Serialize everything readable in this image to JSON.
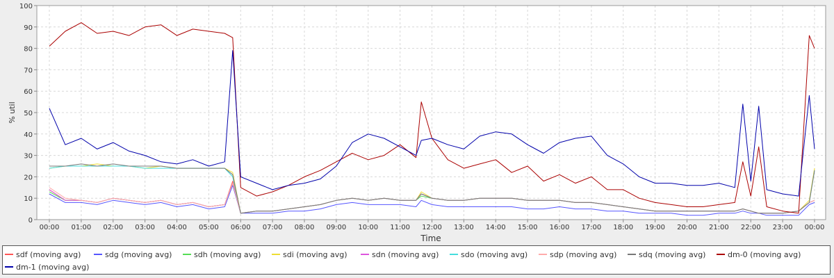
{
  "chart_data": {
    "type": "line",
    "xlabel": "Time",
    "ylabel": "% util",
    "ylim": [
      0,
      100
    ],
    "yticks": [
      0,
      10,
      20,
      30,
      40,
      50,
      60,
      70,
      80,
      90,
      100
    ],
    "xlim": [
      "00:00",
      "24:00"
    ],
    "xticks": [
      "00:00",
      "01:00",
      "02:00",
      "03:00",
      "04:00",
      "05:00",
      "06:00",
      "07:00",
      "08:00",
      "09:00",
      "10:00",
      "11:00",
      "12:00",
      "13:00",
      "14:00",
      "15:00",
      "16:00",
      "17:00",
      "18:00",
      "19:00",
      "20:00",
      "21:00",
      "22:00",
      "23:00",
      "00:00"
    ],
    "grid": true,
    "legend_position": "bottom",
    "x": [
      "00:00",
      "00:30",
      "01:00",
      "01:30",
      "02:00",
      "02:30",
      "03:00",
      "03:30",
      "04:00",
      "04:30",
      "05:00",
      "05:30",
      "05:45",
      "06:00",
      "06:30",
      "07:00",
      "07:30",
      "08:00",
      "08:30",
      "09:00",
      "09:30",
      "10:00",
      "10:30",
      "11:00",
      "11:30",
      "11:40",
      "12:00",
      "12:30",
      "13:00",
      "13:30",
      "14:00",
      "14:30",
      "15:00",
      "15:30",
      "16:00",
      "16:30",
      "17:00",
      "17:30",
      "18:00",
      "18:30",
      "19:00",
      "19:30",
      "20:00",
      "20:30",
      "21:00",
      "21:30",
      "21:45",
      "22:00",
      "22:15",
      "22:30",
      "23:00",
      "23:30",
      "23:50",
      "24:00"
    ],
    "series": [
      {
        "name": "sdf (moving avg)",
        "color": "#ff5555",
        "values": [
          14,
          9,
          9,
          8,
          10,
          9,
          8,
          9,
          7,
          8,
          6,
          7,
          18,
          3,
          4,
          4,
          5,
          6,
          7,
          9,
          10,
          9,
          10,
          9,
          9,
          12,
          10,
          9,
          9,
          10,
          10,
          10,
          9,
          9,
          9,
          8,
          8,
          7,
          6,
          5,
          4,
          4,
          4,
          4,
          4,
          4,
          5,
          4,
          3,
          3,
          3,
          4,
          8,
          9
        ]
      },
      {
        "name": "sdg (moving avg)",
        "color": "#5555ff",
        "values": [
          12,
          8,
          8,
          7,
          9,
          8,
          7,
          8,
          6,
          7,
          5,
          6,
          16,
          3,
          3,
          3,
          4,
          4,
          5,
          7,
          8,
          7,
          7,
          7,
          6,
          9,
          7,
          6,
          6,
          6,
          6,
          6,
          5,
          5,
          6,
          5,
          5,
          4,
          4,
          3,
          3,
          3,
          2,
          2,
          3,
          3,
          4,
          3,
          3,
          2,
          2,
          2,
          7,
          8
        ]
      },
      {
        "name": "sdh (moving avg)",
        "color": "#55dd55",
        "values": [
          13,
          9,
          9,
          8,
          10,
          9,
          8,
          9,
          7,
          8,
          6,
          7,
          17,
          3,
          4,
          4,
          5,
          6,
          7,
          9,
          10,
          9,
          10,
          9,
          9,
          11,
          10,
          9,
          9,
          10,
          10,
          10,
          9,
          9,
          9,
          8,
          8,
          7,
          6,
          5,
          4,
          4,
          4,
          4,
          4,
          4,
          5,
          4,
          3,
          3,
          3,
          4,
          8,
          9
        ]
      },
      {
        "name": "sdi (moving avg)",
        "color": "#eedd33",
        "values": [
          24,
          25,
          25,
          26,
          25,
          25,
          24,
          25,
          24,
          24,
          24,
          24,
          22,
          3,
          4,
          4,
          5,
          6,
          7,
          9,
          10,
          9,
          10,
          9,
          9,
          13,
          10,
          9,
          9,
          10,
          10,
          10,
          9,
          9,
          9,
          8,
          8,
          7,
          6,
          5,
          4,
          4,
          4,
          4,
          4,
          4,
          5,
          4,
          3,
          3,
          3,
          4,
          9,
          24
        ]
      },
      {
        "name": "sdn (moving avg)",
        "color": "#dd55dd",
        "values": [
          14,
          9,
          9,
          8,
          10,
          9,
          8,
          9,
          7,
          8,
          6,
          7,
          17,
          3,
          4,
          4,
          5,
          6,
          7,
          9,
          10,
          9,
          10,
          9,
          9,
          12,
          10,
          9,
          9,
          10,
          10,
          10,
          9,
          9,
          9,
          8,
          8,
          7,
          6,
          5,
          4,
          4,
          4,
          4,
          4,
          4,
          5,
          4,
          3,
          3,
          3,
          4,
          8,
          9
        ]
      },
      {
        "name": "sdo (moving avg)",
        "color": "#44dddd",
        "values": [
          24,
          25,
          25,
          25,
          25,
          25,
          24,
          24,
          24,
          24,
          24,
          24,
          20,
          3,
          4,
          4,
          5,
          6,
          7,
          9,
          10,
          9,
          10,
          9,
          9,
          12,
          10,
          9,
          9,
          10,
          10,
          10,
          9,
          9,
          9,
          8,
          8,
          7,
          6,
          5,
          4,
          4,
          4,
          4,
          4,
          4,
          5,
          4,
          3,
          3,
          3,
          4,
          8,
          23
        ]
      },
      {
        "name": "sdp (moving avg)",
        "color": "#ffaaaa",
        "values": [
          15,
          10,
          9,
          8,
          10,
          9,
          8,
          9,
          7,
          8,
          6,
          7,
          17,
          3,
          4,
          4,
          5,
          6,
          7,
          9,
          10,
          9,
          10,
          9,
          9,
          12,
          10,
          9,
          9,
          10,
          10,
          10,
          9,
          9,
          9,
          8,
          8,
          7,
          6,
          5,
          4,
          4,
          4,
          4,
          4,
          4,
          5,
          4,
          3,
          3,
          3,
          4,
          8,
          9
        ]
      },
      {
        "name": "sdq (moving avg)",
        "color": "#777777",
        "values": [
          25,
          25,
          26,
          25,
          26,
          25,
          25,
          25,
          24,
          24,
          24,
          24,
          21,
          3,
          4,
          4,
          5,
          6,
          7,
          9,
          10,
          9,
          10,
          9,
          9,
          12,
          10,
          9,
          9,
          10,
          10,
          10,
          9,
          9,
          9,
          8,
          8,
          7,
          6,
          5,
          4,
          4,
          4,
          4,
          4,
          4,
          5,
          4,
          3,
          3,
          3,
          4,
          8,
          23
        ]
      },
      {
        "name": "dm-0 (moving avg)",
        "color": "#aa0000",
        "values": [
          81,
          88,
          92,
          87,
          88,
          86,
          90,
          91,
          86,
          89,
          88,
          87,
          85,
          15,
          11,
          13,
          16,
          20,
          23,
          27,
          31,
          28,
          30,
          35,
          29,
          55,
          38,
          28,
          24,
          26,
          28,
          22,
          25,
          18,
          21,
          17,
          20,
          14,
          14,
          10,
          8,
          7,
          6,
          6,
          7,
          8,
          27,
          11,
          34,
          6,
          4,
          3,
          86,
          80
        ]
      },
      {
        "name": "dm-1 (moving avg)",
        "color": "#0000aa",
        "values": [
          52,
          35,
          38,
          33,
          36,
          32,
          30,
          27,
          26,
          28,
          25,
          27,
          79,
          20,
          17,
          14,
          16,
          17,
          19,
          25,
          36,
          40,
          38,
          34,
          30,
          37,
          38,
          35,
          33,
          39,
          41,
          40,
          35,
          31,
          36,
          38,
          39,
          30,
          26,
          20,
          17,
          17,
          16,
          16,
          17,
          15,
          54,
          18,
          53,
          14,
          12,
          11,
          58,
          33
        ]
      }
    ]
  }
}
